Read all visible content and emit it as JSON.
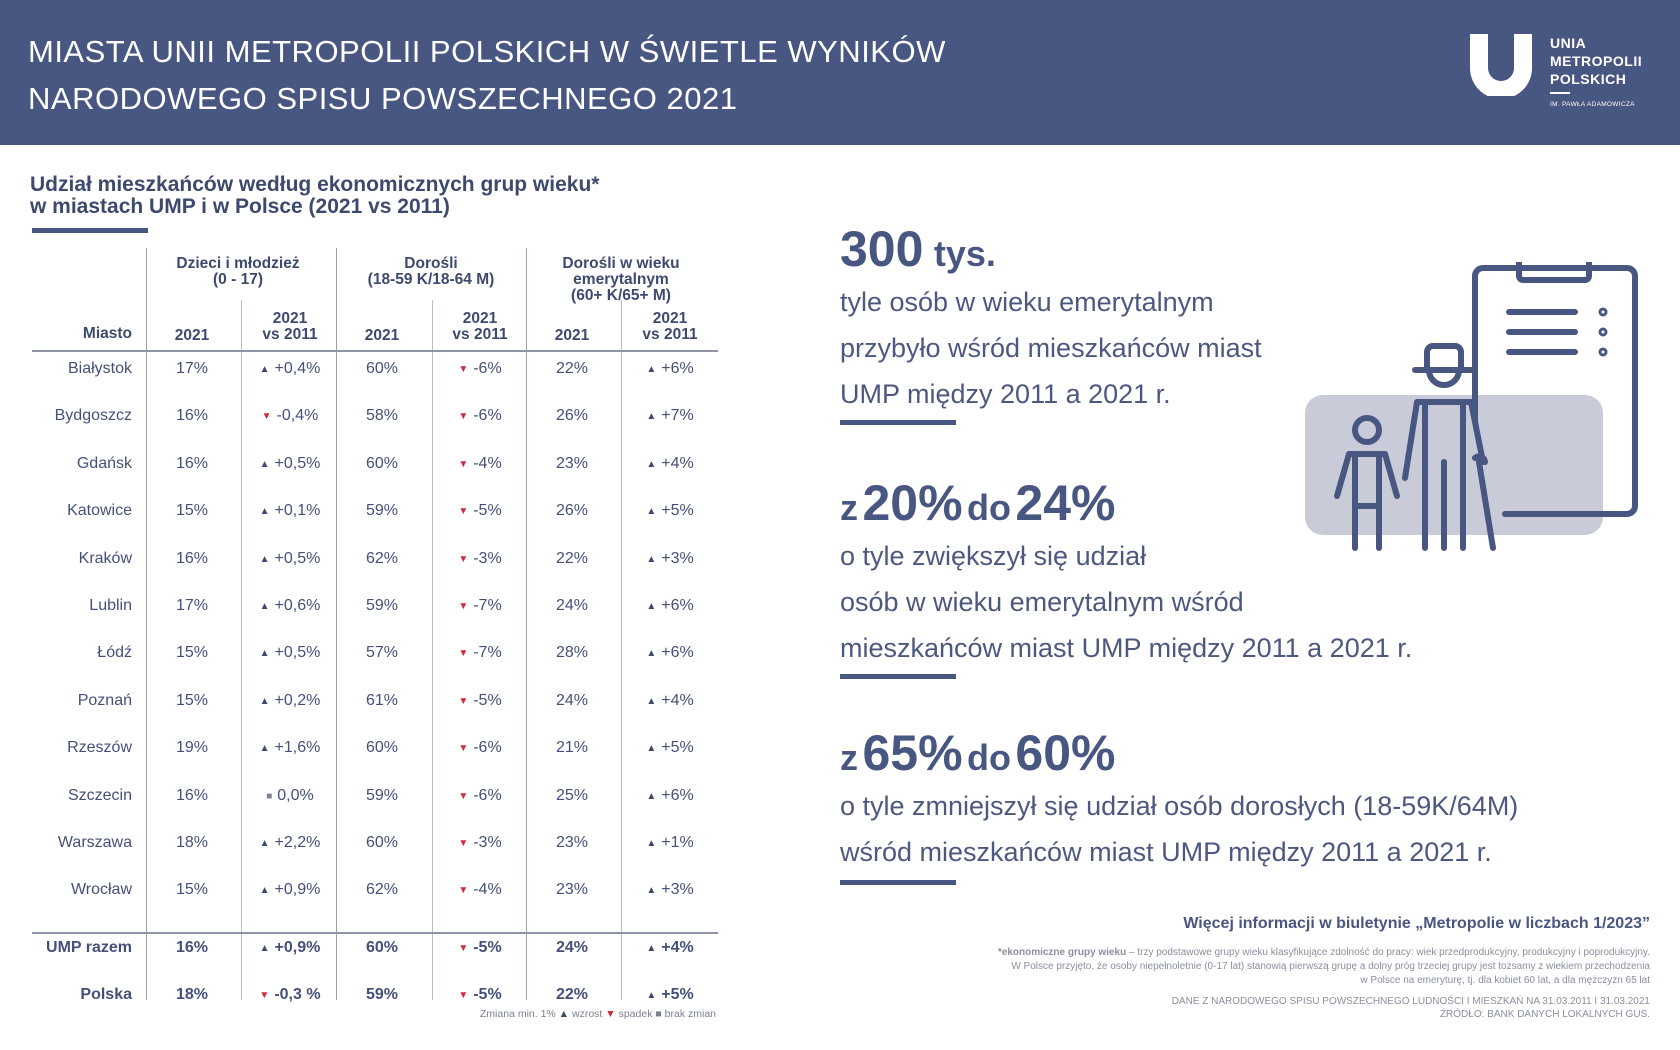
{
  "header": {
    "title_line1": "MIASTA UNII METROPOLII POLSKICH W ŚWIETLE WYNIKÓW",
    "title_line2": "NARODOWEGO SPISU POWSZECHNEGO 2021",
    "logo": {
      "line1": "UNIA",
      "line2": "METROPOLII",
      "line3": "POLSKICH",
      "sub": "IM. PAWŁA ADAMOWICZA"
    }
  },
  "colors": {
    "brand": "#485682",
    "up": "#3d4a6e",
    "down": "#d0283c",
    "same": "#7a8090"
  },
  "chart_data": {
    "type": "table",
    "title_line1": "Udział mieszkańców według ekonomicznych grup wieku*",
    "title_line2": "w miastach UMP i w Polsce (2021 vs 2011)",
    "groups": [
      {
        "label_line1": "Dzieci i młodzież",
        "label_line2": "(0 - 17)",
        "label_line3": ""
      },
      {
        "label_line1": "Dorośli",
        "label_line2": "(18-59 K/18-64 M)",
        "label_line3": ""
      },
      {
        "label_line1": "Dorośli w wieku",
        "label_line2": "emerytalnym",
        "label_line3": "(60+ K/65+ M)"
      }
    ],
    "columns": {
      "city": "Miasto",
      "year": "2021",
      "change_line1": "2021",
      "change_line2": "vs 2011"
    },
    "rows": [
      {
        "city": "Białystok",
        "v": [
          "17%",
          "+0,4%",
          "60%",
          "-6%",
          "22%",
          "+6%"
        ],
        "d": [
          "up",
          "down",
          "up"
        ]
      },
      {
        "city": "Bydgoszcz",
        "v": [
          "16%",
          "-0,4%",
          "58%",
          "-6%",
          "26%",
          "+7%"
        ],
        "d": [
          "down",
          "down",
          "up"
        ]
      },
      {
        "city": "Gdańsk",
        "v": [
          "16%",
          "+0,5%",
          "60%",
          "-4%",
          "23%",
          "+4%"
        ],
        "d": [
          "up",
          "down",
          "up"
        ]
      },
      {
        "city": "Katowice",
        "v": [
          "15%",
          "+0,1%",
          "59%",
          "-5%",
          "26%",
          "+5%"
        ],
        "d": [
          "up",
          "down",
          "up"
        ]
      },
      {
        "city": "Kraków",
        "v": [
          "16%",
          "+0,5%",
          "62%",
          "-3%",
          "22%",
          "+3%"
        ],
        "d": [
          "up",
          "down",
          "up"
        ]
      },
      {
        "city": "Lublin",
        "v": [
          "17%",
          "+0,6%",
          "59%",
          "-7%",
          "24%",
          "+6%"
        ],
        "d": [
          "up",
          "down",
          "up"
        ]
      },
      {
        "city": "Łódź",
        "v": [
          "15%",
          "+0,5%",
          "57%",
          "-7%",
          "28%",
          "+6%"
        ],
        "d": [
          "up",
          "down",
          "up"
        ]
      },
      {
        "city": "Poznań",
        "v": [
          "15%",
          "+0,2%",
          "61%",
          "-5%",
          "24%",
          "+4%"
        ],
        "d": [
          "up",
          "down",
          "up"
        ]
      },
      {
        "city": "Rzeszów",
        "v": [
          "19%",
          "+1,6%",
          "60%",
          "-6%",
          "21%",
          "+5%"
        ],
        "d": [
          "up",
          "down",
          "up"
        ]
      },
      {
        "city": "Szczecin",
        "v": [
          "16%",
          "0,0%",
          "59%",
          "-6%",
          "25%",
          "+6%"
        ],
        "d": [
          "same",
          "down",
          "up"
        ]
      },
      {
        "city": "Warszawa",
        "v": [
          "18%",
          "+2,2%",
          "60%",
          "-3%",
          "23%",
          "+1%"
        ],
        "d": [
          "up",
          "down",
          "up"
        ]
      },
      {
        "city": "Wrocław",
        "v": [
          "15%",
          "+0,9%",
          "62%",
          "-4%",
          "23%",
          "+3%"
        ],
        "d": [
          "up",
          "down",
          "up"
        ]
      }
    ],
    "totals": [
      {
        "city": "UMP razem",
        "v": [
          "16%",
          "+0,9%",
          "60%",
          "-5%",
          "24%",
          "+4%"
        ],
        "d": [
          "up",
          "down",
          "up"
        ]
      },
      {
        "city": "Polska",
        "v": [
          "18%",
          "-0,3 %",
          "59%",
          "-5%",
          "22%",
          "+5%"
        ],
        "d": [
          "down",
          "down",
          "up"
        ]
      }
    ],
    "legend": {
      "text": "Zmiana min. 1%",
      "up": "wzrost",
      "down": "spadek",
      "same": "brak zmian"
    }
  },
  "stats": [
    {
      "big_number": "300",
      "big_unit": "tys.",
      "lines": [
        "tyle osób w wieku emerytalnym",
        "przybyło wśród mieszkańców miast",
        "UMP między 2011 a 2021 r."
      ]
    },
    {
      "prefix": "z",
      "from": "20%",
      "mid": "do",
      "to": "24%",
      "lines": [
        "o tyle zwiększył się udział",
        "osób w wieku emerytalnym wśród",
        "mieszkańców miast UMP między 2011 a 2021 r."
      ]
    },
    {
      "prefix": "z",
      "from": "65%",
      "mid": "do",
      "to": "60%",
      "lines": [
        "o tyle zmniejszył się udział osób dorosłych (18-59K/64M)",
        "wśród mieszkańców miast UMP między 2011 a 2021 r."
      ]
    }
  ],
  "footer": {
    "more_info": "Więcej informacji w biuletynie „Metropolie w liczbach 1/2023”",
    "footnote_bold": "*ekonomiczne grupy wieku",
    "footnote_line1": " – trzy podstawowe grupy wieku  klasyfikujące zdolność do pracy: wiek przedprodukcyjny, produkcyjny i poprodukcyjny.",
    "footnote_line2": "W Polsce przyjęto, że osoby niepełnoletnie (0-17 lat) stanowią pierwszą grupę a dolny próg trzeciej grupy jest tożsamy z wiekiem przechodzenia",
    "footnote_line3": "w Polsce na emeryturę, tj. dla kobiet 60 lat, a dla mężczyzn 65 lat",
    "source_line1": "DANE Z NARODOWEGO SPISU POWSZECHNEGO LUDNOŚCI I MIESZKAŃ NA 31.03.2011 I 31.03.2021",
    "source_line2": "ŹRÓDŁO: BANK DANYCH LOKALNYCH GUS."
  }
}
